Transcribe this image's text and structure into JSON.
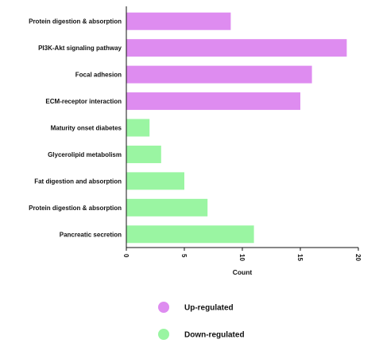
{
  "chart_data": {
    "type": "bar",
    "orientation": "horizontal",
    "categories": [
      "Protein digestion & absorption",
      "PI3K-Akt signaling pathway",
      "Focal adhesion",
      "ECM-receptor interaction",
      "Maturity onset diabetes",
      "Glycerolipid metabolism",
      "Fat digestion and absorption",
      "Protein digestion & absorption",
      "Pancreatic secretion"
    ],
    "values": [
      9,
      19,
      16,
      15,
      2,
      3,
      5,
      7,
      11
    ],
    "groups": [
      "up",
      "up",
      "up",
      "up",
      "down",
      "down",
      "down",
      "down",
      "down"
    ],
    "series": [
      {
        "name": "Up-regulated",
        "key": "up",
        "color": "#de8cf0"
      },
      {
        "name": "Down-regulated",
        "key": "down",
        "color": "#9af5a2"
      }
    ],
    "title": "",
    "xlabel": "Count",
    "ylabel": "",
    "xlim": [
      0,
      20
    ],
    "xticks": [
      "0",
      "5",
      "10",
      "15",
      "20"
    ],
    "grid": false,
    "legend": "bottom"
  }
}
